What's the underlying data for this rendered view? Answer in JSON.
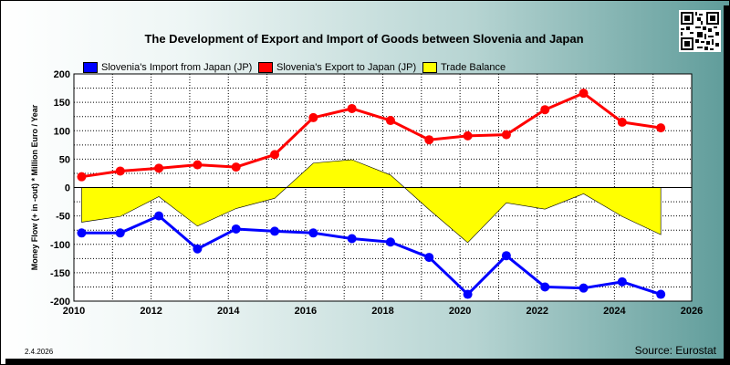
{
  "title": "The Development of Export and Import of Goods between Slovenia and Japan",
  "date": "2.4.2026",
  "source": "Source: Eurostat",
  "colors": {
    "import": "#0000ff",
    "export": "#ff0000",
    "balance": "#ffff00",
    "plot_background": "#ffffff"
  },
  "chart_data": {
    "type": "line",
    "title": "The Development of Export and Import of Goods between Slovenia and Japan",
    "xlabel": "",
    "ylabel": "Money Flow (+ in -out) * Million Euro / Year",
    "xlim": [
      2010,
      2026
    ],
    "ylim": [
      -200,
      200
    ],
    "x_ticks": [
      2010,
      2012,
      2014,
      2016,
      2018,
      2020,
      2022,
      2024,
      2026
    ],
    "y_ticks": [
      -200,
      -150,
      -100,
      -50,
      0,
      50,
      100,
      150,
      200
    ],
    "grid": true,
    "legend_position": "top",
    "x": [
      2010.2,
      2011.2,
      2012.2,
      2013.2,
      2014.2,
      2015.2,
      2016.2,
      2017.2,
      2018.2,
      2019.2,
      2020.2,
      2021.2,
      2022.2,
      2023.2,
      2024.2,
      2025.2
    ],
    "series": [
      {
        "name": "Slovenia's Import from Japan (JP)",
        "type": "line",
        "values": [
          -80,
          -80,
          -50,
          -108,
          -73,
          -77,
          -80,
          -90,
          -96,
          -123,
          -188,
          -120,
          -175,
          -177,
          -166,
          -188
        ]
      },
      {
        "name": "Slovenia's Export to Japan (JP)",
        "type": "line",
        "values": [
          19,
          29,
          34,
          40,
          36,
          58,
          123,
          139,
          118,
          84,
          91,
          93,
          137,
          166,
          115,
          105
        ]
      },
      {
        "name": "Trade Balance",
        "type": "area",
        "values": [
          -61,
          -51,
          -16,
          -68,
          -37,
          -19,
          43,
          49,
          22,
          -39,
          -97,
          -27,
          -38,
          -11,
          -51,
          -83
        ]
      }
    ]
  }
}
